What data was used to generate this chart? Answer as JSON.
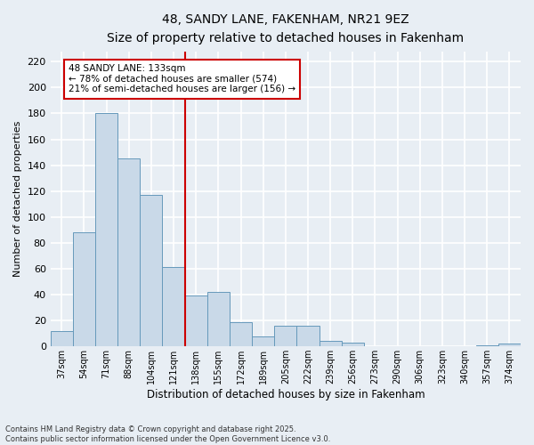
{
  "title_line1": "48, SANDY LANE, FAKENHAM, NR21 9EZ",
  "title_line2": "Size of property relative to detached houses in Fakenham",
  "xlabel": "Distribution of detached houses by size in Fakenham",
  "ylabel": "Number of detached properties",
  "footer_line1": "Contains HM Land Registry data © Crown copyright and database right 2025.",
  "footer_line2": "Contains public sector information licensed under the Open Government Licence v3.0.",
  "categories": [
    "37sqm",
    "54sqm",
    "71sqm",
    "88sqm",
    "104sqm",
    "121sqm",
    "138sqm",
    "155sqm",
    "172sqm",
    "189sqm",
    "205sqm",
    "222sqm",
    "239sqm",
    "256sqm",
    "273sqm",
    "290sqm",
    "306sqm",
    "323sqm",
    "340sqm",
    "357sqm",
    "374sqm"
  ],
  "values": [
    12,
    88,
    180,
    145,
    117,
    61,
    39,
    42,
    19,
    8,
    16,
    16,
    4,
    3,
    0,
    0,
    0,
    0,
    0,
    1,
    2
  ],
  "bar_color": "#c9d9e8",
  "bar_edge_color": "#6699bb",
  "background_color": "#e8eef4",
  "grid_color": "#ffffff",
  "vline_color": "#cc0000",
  "annotation_text": "48 SANDY LANE: 133sqm\n← 78% of detached houses are smaller (574)\n21% of semi-detached houses are larger (156) →",
  "annotation_box_color": "#ffffff",
  "annotation_box_edge_color": "#cc0000",
  "ylim": [
    0,
    228
  ],
  "yticks": [
    0,
    20,
    40,
    60,
    80,
    100,
    120,
    140,
    160,
    180,
    200,
    220
  ]
}
